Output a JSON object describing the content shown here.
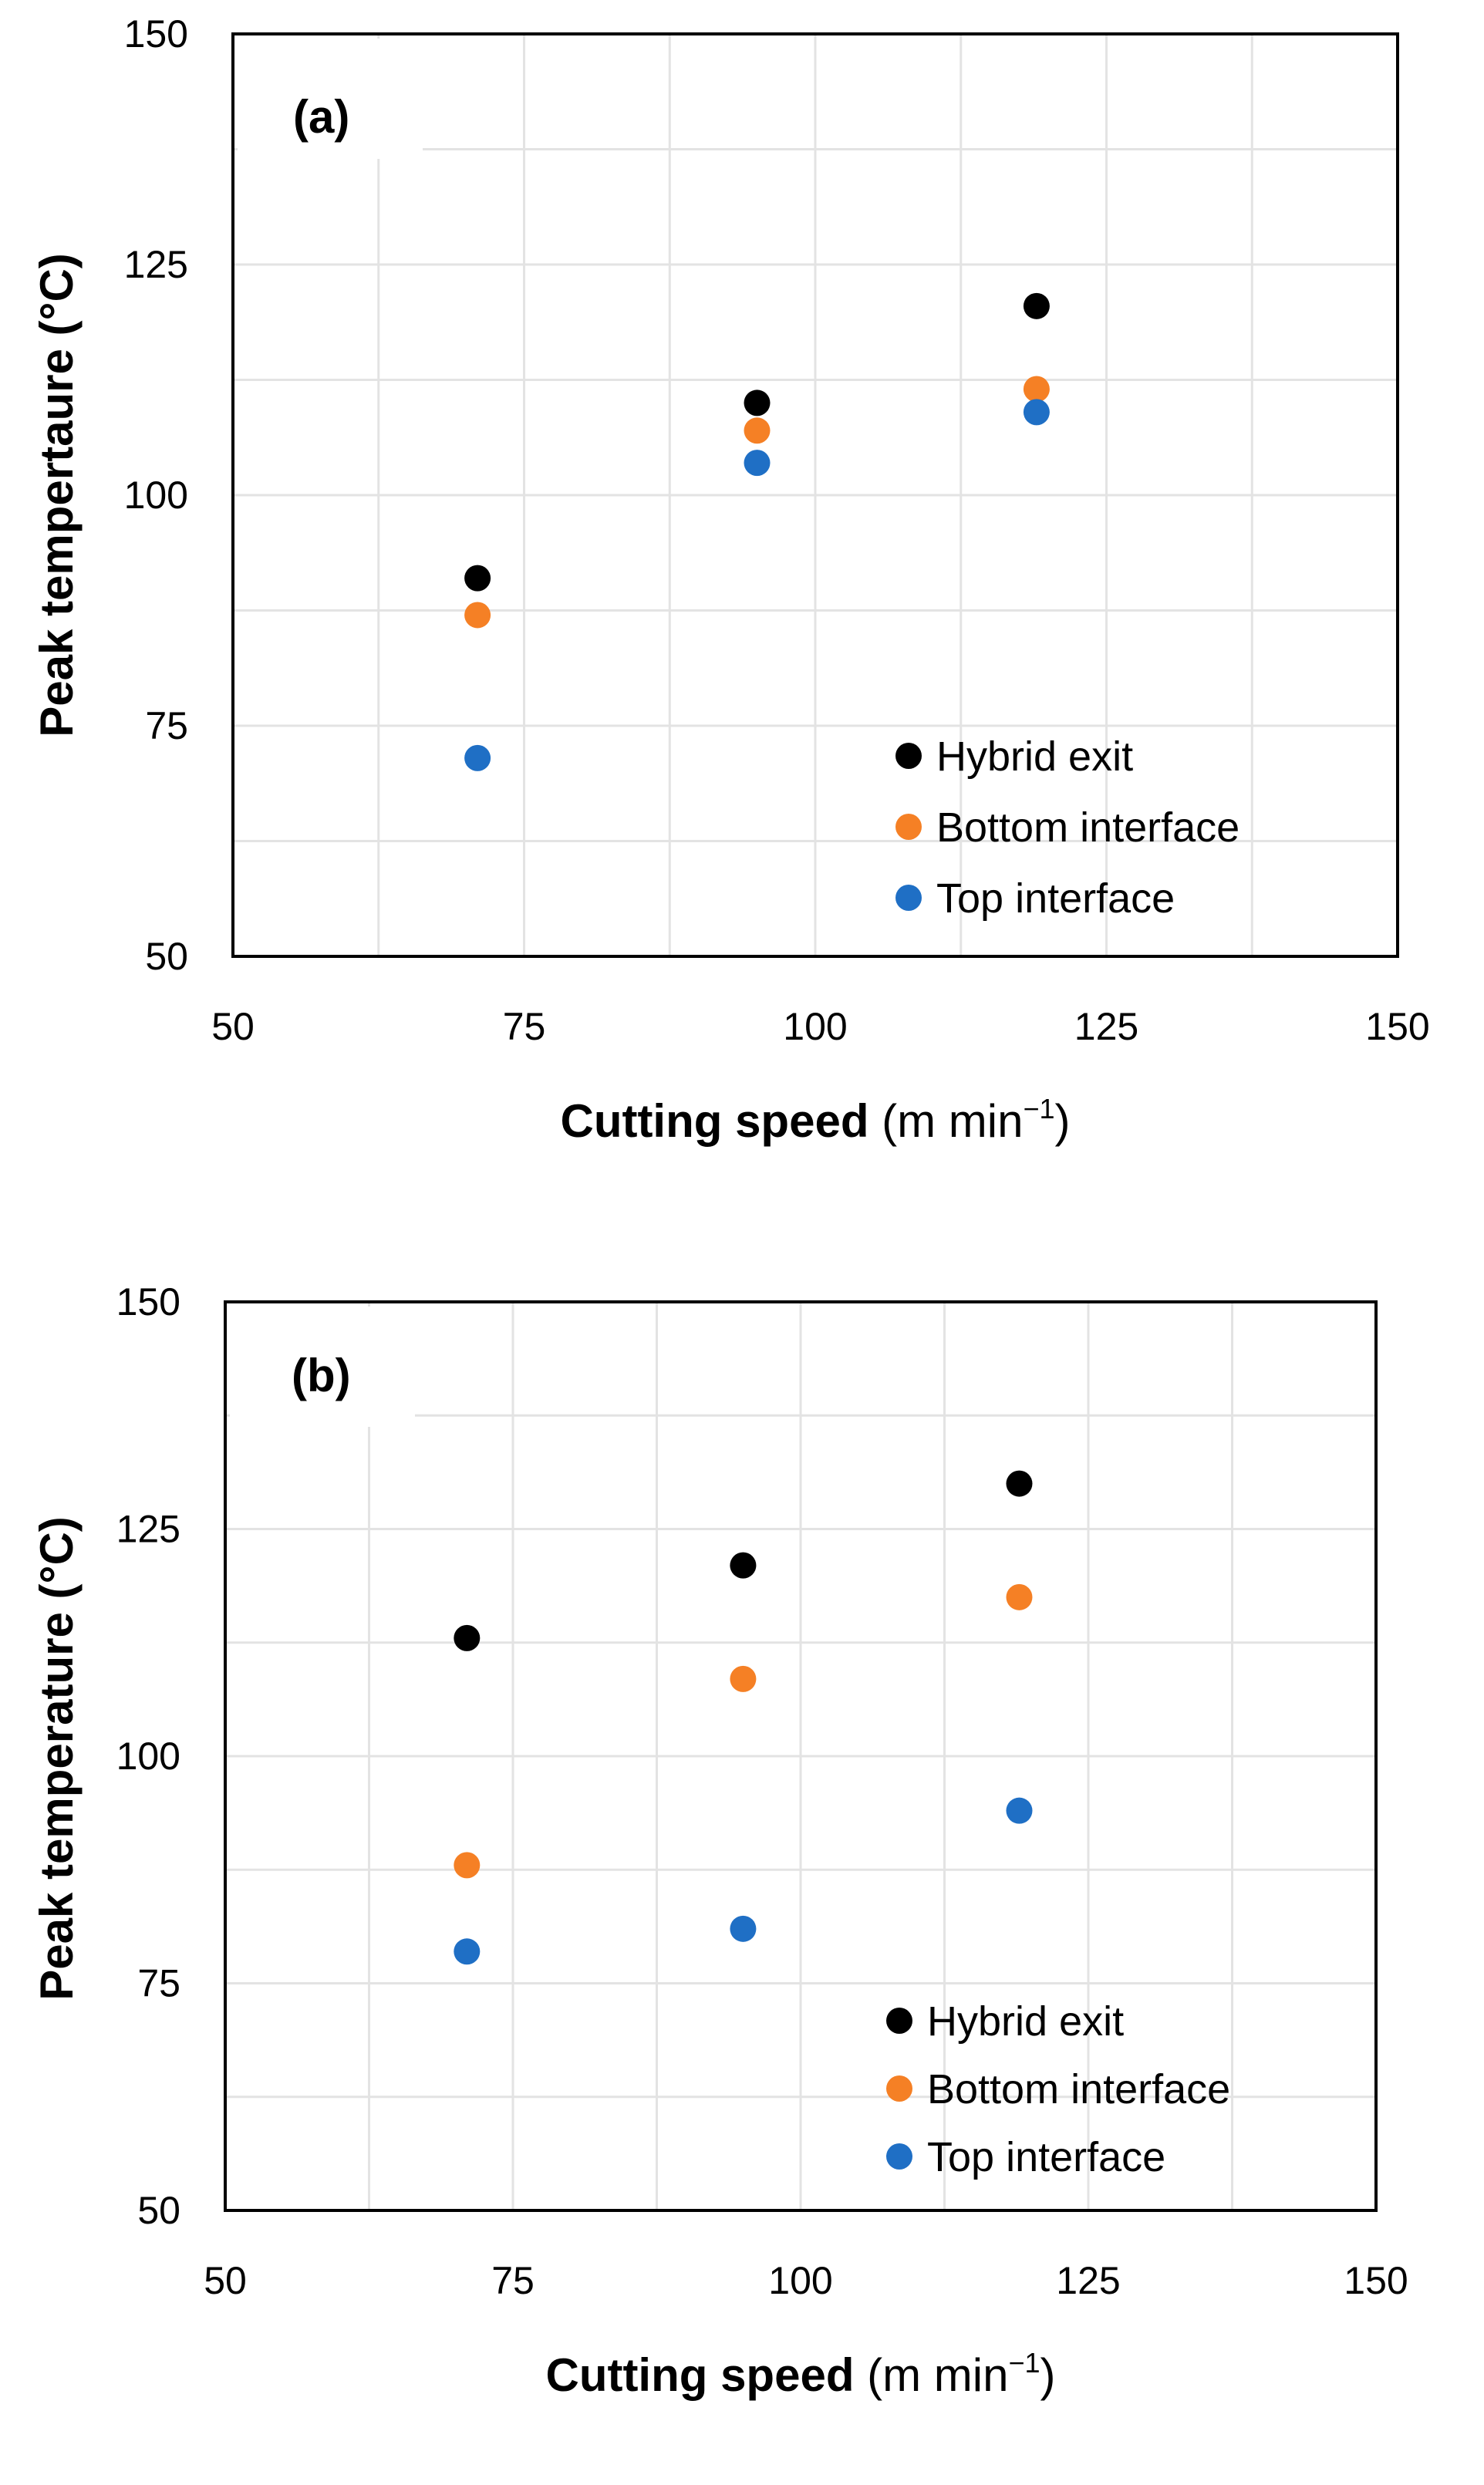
{
  "chart_data": [
    {
      "type": "scatter",
      "panel_label": "(a)",
      "xlabel": "Cutting speed",
      "xlabel_unit_open": " (m min",
      "xlabel_unit_exp": "−1",
      "xlabel_unit_close": ")",
      "ylabel": "Peak tempertaure (°C)",
      "xlim": [
        50,
        150
      ],
      "ylim": [
        50,
        150
      ],
      "x_ticks": [
        50,
        75,
        100,
        125,
        150
      ],
      "y_ticks": [
        50,
        75,
        100,
        125,
        150
      ],
      "grid": true,
      "legend_position": "bottom-right",
      "series": [
        {
          "name": "Hybrid exit",
          "color": "#000000",
          "x": [
            71,
            95,
            119
          ],
          "y": [
            91,
            110,
            120.5
          ]
        },
        {
          "name": "Bottom interface",
          "color": "#F58025",
          "x": [
            71,
            95,
            119
          ],
          "y": [
            87,
            107,
            111.5
          ]
        },
        {
          "name": "Top interface",
          "color": "#1F6FC5",
          "x": [
            71,
            95,
            119
          ],
          "y": [
            71.5,
            103.5,
            109
          ]
        }
      ]
    },
    {
      "type": "scatter",
      "panel_label": "(b)",
      "xlabel": "Cutting speed",
      "xlabel_unit_open": " (m min",
      "xlabel_unit_exp": "−1",
      "xlabel_unit_close": ")",
      "ylabel": "Peak temperature (°C)",
      "xlim": [
        50,
        150
      ],
      "ylim": [
        50,
        150
      ],
      "x_ticks": [
        50,
        75,
        100,
        125,
        150
      ],
      "y_ticks": [
        50,
        75,
        100,
        125,
        150
      ],
      "grid": true,
      "legend_position": "bottom-right",
      "series": [
        {
          "name": "Hybrid exit",
          "color": "#000000",
          "x": [
            71,
            95,
            119
          ],
          "y": [
            113,
            121,
            130
          ]
        },
        {
          "name": "Bottom interface",
          "color": "#F58025",
          "x": [
            71,
            95,
            119
          ],
          "y": [
            88,
            108.5,
            117.5
          ]
        },
        {
          "name": "Top interface",
          "color": "#1F6FC5",
          "x": [
            71,
            95,
            119
          ],
          "y": [
            78.5,
            81,
            94
          ]
        }
      ]
    }
  ]
}
